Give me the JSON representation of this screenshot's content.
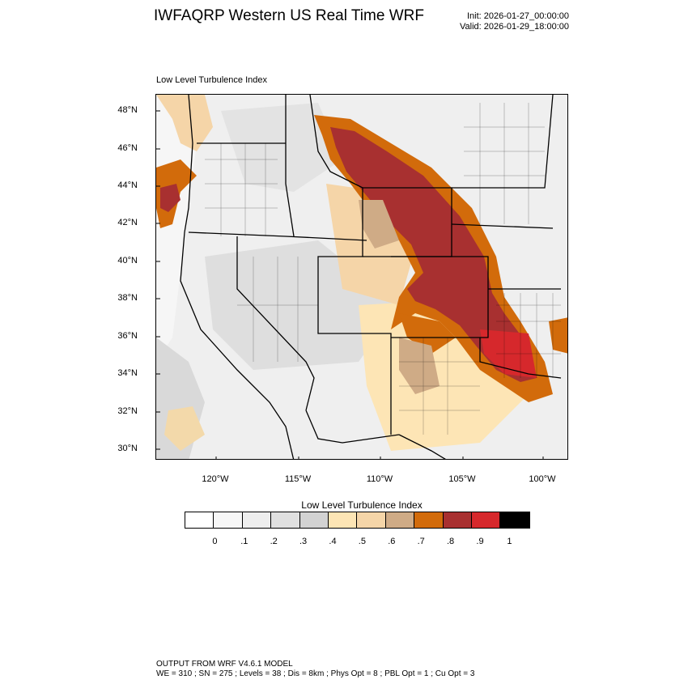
{
  "header": {
    "title": "IWFAQRP Western US Real Time WRF",
    "init": "Init: 2026-01-27_00:00:00",
    "valid": "Valid: 2026-01-29_18:00:00"
  },
  "map": {
    "label": "Low Level Turbulence Index",
    "lat_labels": [
      "48°N",
      "46°N",
      "44°N",
      "42°N",
      "40°N",
      "38°N",
      "36°N",
      "34°N",
      "32°N",
      "30°N"
    ],
    "lon_labels": [
      "120°W",
      "115°W",
      "110°W",
      "105°W",
      "100°W"
    ]
  },
  "colorbar": {
    "title": "Low Level Turbulence Index",
    "colors": [
      "#ffffff",
      "#f7f7f7",
      "#eeeeee",
      "#e0e0e0",
      "#d2d2d2",
      "#fde5b5",
      "#f5d5a8",
      "#cfab86",
      "#d26b0b",
      "#a83030",
      "#d6282c",
      "#000000"
    ],
    "ticks": [
      "0",
      ".1",
      ".2",
      ".3",
      ".4",
      ".5",
      ".6",
      ".7",
      ".8",
      ".9",
      "1"
    ]
  },
  "footer": {
    "line1": "OUTPUT FROM WRF V4.6.1 MODEL",
    "line2": "WE = 310 ; SN = 275 ; Levels = 38 ; Dis = 8km ; Phys Opt = 8 ; PBL Opt = 1 ; Cu Opt = 3"
  }
}
